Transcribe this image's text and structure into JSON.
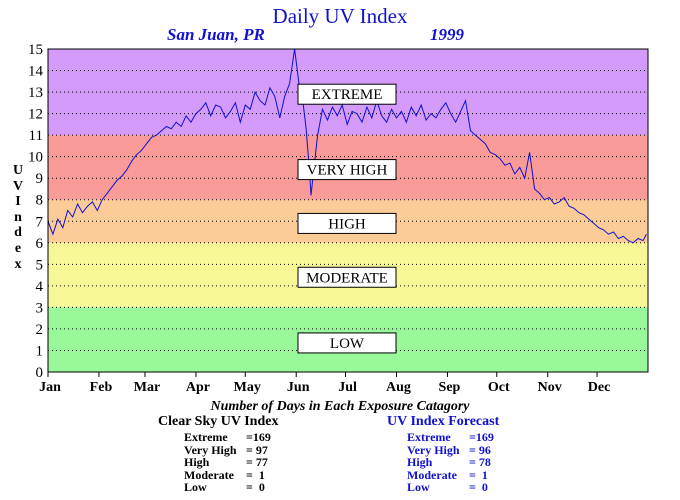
{
  "title": "Daily UV Index",
  "subtitle_location": "San Juan, PR",
  "subtitle_year": "1999",
  "chart_data": {
    "type": "line",
    "title": "Daily UV Index",
    "ylabel": "UV Index",
    "xlabel": "",
    "ylim": [
      0,
      15
    ],
    "yticks": [
      0,
      1,
      2,
      3,
      4,
      5,
      6,
      7,
      8,
      9,
      10,
      11,
      12,
      13,
      14,
      15
    ],
    "month_labels": [
      "Jan",
      "Feb",
      "Mar",
      "Apr",
      "May",
      "Jun",
      "Jul",
      "Aug",
      "Sep",
      "Oct",
      "Nov",
      "Dec"
    ],
    "grid": true,
    "bands": [
      {
        "label": "LOW",
        "from": 0,
        "to": 3,
        "color": "#99f899"
      },
      {
        "label": "MODERATE",
        "from": 3,
        "to": 6,
        "color": "#f8f897"
      },
      {
        "label": "HIGH",
        "from": 6,
        "to": 8,
        "color": "#fccc98"
      },
      {
        "label": "VERY HIGH",
        "from": 8,
        "to": 11,
        "color": "#f99b99"
      },
      {
        "label": "EXTREME",
        "from": 11,
        "to": 15,
        "color": "#d49bfb"
      }
    ],
    "band_label_values": {
      "EXTREME": 12.9,
      "VERY HIGH": 9.4,
      "HIGH": 6.9,
      "MODERATE": 4.4,
      "LOW": 1.35
    },
    "series": [
      {
        "color": "#1010d0",
        "points": [
          [
            1,
            7.0
          ],
          [
            4,
            6.4
          ],
          [
            7,
            7.1
          ],
          [
            10,
            6.7
          ],
          [
            13,
            7.5
          ],
          [
            16,
            7.2
          ],
          [
            19,
            7.8
          ],
          [
            22,
            7.4
          ],
          [
            25,
            7.7
          ],
          [
            28,
            7.9
          ],
          [
            31,
            7.5
          ],
          [
            34,
            8.0
          ],
          [
            37,
            8.3
          ],
          [
            40,
            8.6
          ],
          [
            43,
            8.9
          ],
          [
            46,
            9.1
          ],
          [
            49,
            9.4
          ],
          [
            52,
            9.8
          ],
          [
            55,
            10.1
          ],
          [
            58,
            10.3
          ],
          [
            61,
            10.6
          ],
          [
            64,
            10.9
          ],
          [
            67,
            11.0
          ],
          [
            70,
            11.2
          ],
          [
            73,
            11.4
          ],
          [
            76,
            11.3
          ],
          [
            79,
            11.6
          ],
          [
            82,
            11.4
          ],
          [
            85,
            11.9
          ],
          [
            88,
            11.6
          ],
          [
            91,
            12.0
          ],
          [
            94,
            12.2
          ],
          [
            97,
            12.5
          ],
          [
            100,
            11.9
          ],
          [
            103,
            12.4
          ],
          [
            106,
            12.3
          ],
          [
            109,
            11.8
          ],
          [
            112,
            12.1
          ],
          [
            115,
            12.5
          ],
          [
            118,
            11.6
          ],
          [
            121,
            12.4
          ],
          [
            124,
            12.2
          ],
          [
            127,
            13.0
          ],
          [
            130,
            12.6
          ],
          [
            133,
            12.4
          ],
          [
            136,
            13.2
          ],
          [
            139,
            12.8
          ],
          [
            142,
            11.8
          ],
          [
            145,
            12.8
          ],
          [
            148,
            13.4
          ],
          [
            151,
            15.0
          ],
          [
            154,
            13.2
          ],
          [
            156,
            12.6
          ],
          [
            158,
            11.3
          ],
          [
            160,
            9.4
          ],
          [
            161,
            8.2
          ],
          [
            163,
            9.6
          ],
          [
            165,
            11.0
          ],
          [
            168,
            12.2
          ],
          [
            171,
            11.7
          ],
          [
            174,
            12.3
          ],
          [
            177,
            11.9
          ],
          [
            180,
            12.4
          ],
          [
            183,
            11.5
          ],
          [
            186,
            12.1
          ],
          [
            189,
            12.0
          ],
          [
            192,
            11.6
          ],
          [
            195,
            12.3
          ],
          [
            198,
            11.8
          ],
          [
            201,
            12.6
          ],
          [
            204,
            11.9
          ],
          [
            207,
            11.6
          ],
          [
            210,
            12.2
          ],
          [
            213,
            11.8
          ],
          [
            216,
            12.1
          ],
          [
            219,
            11.6
          ],
          [
            222,
            12.3
          ],
          [
            225,
            11.9
          ],
          [
            228,
            12.4
          ],
          [
            231,
            11.7
          ],
          [
            234,
            12.0
          ],
          [
            237,
            11.8
          ],
          [
            240,
            12.2
          ],
          [
            243,
            12.5
          ],
          [
            246,
            12.0
          ],
          [
            249,
            11.6
          ],
          [
            252,
            12.1
          ],
          [
            255,
            12.6
          ],
          [
            258,
            11.2
          ],
          [
            261,
            11.0
          ],
          [
            264,
            10.8
          ],
          [
            267,
            10.6
          ],
          [
            270,
            10.2
          ],
          [
            273,
            10.1
          ],
          [
            276,
            9.9
          ],
          [
            279,
            9.6
          ],
          [
            282,
            9.7
          ],
          [
            285,
            9.2
          ],
          [
            288,
            9.5
          ],
          [
            291,
            9.0
          ],
          [
            294,
            10.2
          ],
          [
            297,
            8.5
          ],
          [
            300,
            8.3
          ],
          [
            303,
            8.0
          ],
          [
            306,
            8.1
          ],
          [
            309,
            7.8
          ],
          [
            312,
            7.9
          ],
          [
            315,
            8.1
          ],
          [
            318,
            7.7
          ],
          [
            321,
            7.6
          ],
          [
            324,
            7.4
          ],
          [
            327,
            7.3
          ],
          [
            330,
            7.1
          ],
          [
            333,
            6.9
          ],
          [
            336,
            6.7
          ],
          [
            339,
            6.6
          ],
          [
            342,
            6.4
          ],
          [
            345,
            6.5
          ],
          [
            348,
            6.2
          ],
          [
            351,
            6.3
          ],
          [
            354,
            6.1
          ],
          [
            357,
            6.0
          ],
          [
            360,
            6.2
          ],
          [
            363,
            6.1
          ],
          [
            365,
            6.4
          ]
        ]
      }
    ]
  },
  "counts": {
    "title": "Number of Days in Each Exposure Catagory",
    "clear_sky": {
      "heading": "Clear Sky UV Index",
      "rows": [
        {
          "label": "Extreme",
          "value": "=169"
        },
        {
          "label": "Very High",
          "value": "= 97"
        },
        {
          "label": "High",
          "value": "= 77"
        },
        {
          "label": "Moderate",
          "value": "=  1"
        },
        {
          "label": "Low",
          "value": "=  0"
        }
      ]
    },
    "forecast": {
      "heading": "UV Index Forecast",
      "rows": [
        {
          "label": "Extreme",
          "value": "=169"
        },
        {
          "label": "Very High",
          "value": "= 96"
        },
        {
          "label": "High",
          "value": "= 78"
        },
        {
          "label": "Moderate",
          "value": "=  1"
        },
        {
          "label": "Low",
          "value": "=  0"
        }
      ]
    }
  }
}
